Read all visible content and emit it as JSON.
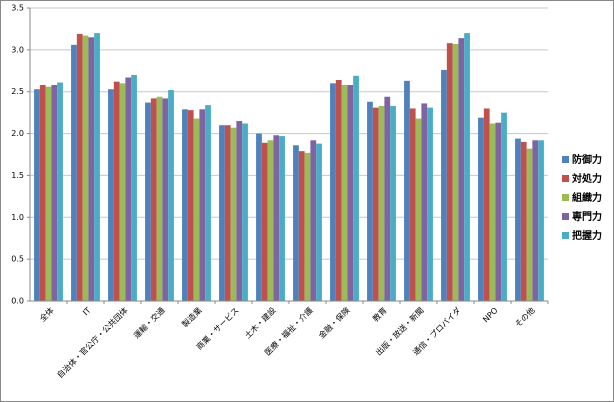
{
  "chart_data": {
    "type": "bar",
    "categories": [
      "全体",
      "IT",
      "自治体・官公庁・公共団体",
      "運輸・交通",
      "製造業",
      "商業・サービス",
      "土木・建設",
      "医療・福祉・介護",
      "金融・保険",
      "教育",
      "出版・放送・新聞",
      "通信・プロバイダ",
      "NPO",
      "その他"
    ],
    "series": [
      {
        "name": "防御力",
        "color": "#4f81bd",
        "values": [
          2.53,
          3.06,
          2.53,
          2.37,
          2.29,
          2.1,
          2.0,
          1.86,
          2.6,
          2.38,
          2.63,
          2.76,
          2.19,
          1.94
        ]
      },
      {
        "name": "対処力",
        "color": "#c0504d",
        "values": [
          2.58,
          3.19,
          2.62,
          2.42,
          2.28,
          2.1,
          1.89,
          1.79,
          2.64,
          2.31,
          2.3,
          3.08,
          2.3,
          1.9
        ]
      },
      {
        "name": "組織力",
        "color": "#9bbb59",
        "values": [
          2.56,
          3.17,
          2.6,
          2.44,
          2.18,
          2.07,
          1.92,
          1.77,
          2.58,
          2.33,
          2.18,
          3.07,
          2.12,
          1.82
        ]
      },
      {
        "name": "専門力",
        "color": "#8064a2",
        "values": [
          2.58,
          3.15,
          2.67,
          2.42,
          2.29,
          2.15,
          1.98,
          1.92,
          2.58,
          2.44,
          2.36,
          3.14,
          2.13,
          1.92
        ]
      },
      {
        "name": "把握力",
        "color": "#4bacc6",
        "values": [
          2.61,
          3.2,
          2.7,
          2.52,
          2.34,
          2.12,
          1.97,
          1.88,
          2.69,
          2.33,
          2.31,
          3.2,
          2.25,
          1.92
        ]
      }
    ],
    "ylim": [
      0,
      3.5
    ],
    "yticks": [
      {
        "value": 0,
        "label": "0.0"
      },
      0.5,
      {
        "value": 1,
        "label": "1.0"
      },
      1.5,
      {
        "value": 2,
        "label": "2.0"
      },
      2.5,
      {
        "value": 3,
        "label": "3.0"
      },
      3.5
    ],
    "grid": true,
    "legend": "right"
  }
}
